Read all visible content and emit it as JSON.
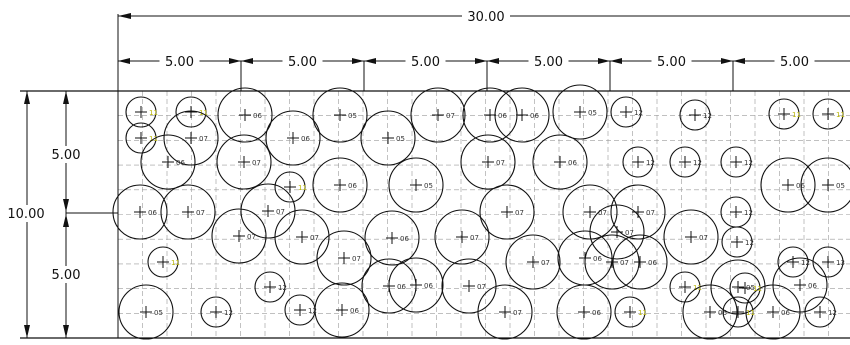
{
  "dimensions": {
    "overall_width": "30.00",
    "segment_width": "5.00",
    "segment_count": 6,
    "overall_height": "10.00",
    "lower_height": "5.00",
    "upper_height": "5.00"
  },
  "colors": {
    "line": "#111111",
    "grid": "#9a9a9a",
    "label_yellow": "#b7b300",
    "label_gray": "#333333"
  },
  "circles": [
    {
      "label": "11",
      "size": "small"
    },
    {
      "label": "11",
      "size": "small"
    },
    {
      "label": "06",
      "size": "large"
    },
    {
      "label": "06",
      "size": "large"
    },
    {
      "label": "05",
      "size": "large"
    },
    {
      "label": "05",
      "size": "large"
    },
    {
      "label": "07",
      "size": "large"
    },
    {
      "label": "06",
      "size": "large"
    },
    {
      "label": "06",
      "size": "large"
    },
    {
      "label": "05",
      "size": "large"
    },
    {
      "label": "12",
      "size": "small"
    },
    {
      "label": "12",
      "size": "small"
    },
    {
      "label": "11",
      "size": "small"
    },
    {
      "label": "11",
      "size": "small"
    },
    {
      "label": "11",
      "size": "small"
    },
    {
      "label": "07",
      "size": "large"
    },
    {
      "label": "06",
      "size": "large"
    },
    {
      "label": "07",
      "size": "large"
    },
    {
      "label": "06",
      "size": "large"
    },
    {
      "label": "07",
      "size": "large"
    },
    {
      "label": "06",
      "size": "large"
    },
    {
      "label": "12",
      "size": "small"
    },
    {
      "label": "12",
      "size": "small"
    },
    {
      "label": "12",
      "size": "small"
    },
    {
      "label": "11",
      "size": "small"
    },
    {
      "label": "06",
      "size": "large"
    },
    {
      "label": "05",
      "size": "large"
    },
    {
      "label": "05",
      "size": "large"
    },
    {
      "label": "06",
      "size": "large"
    },
    {
      "label": "07",
      "size": "large"
    },
    {
      "label": "07",
      "size": "large"
    },
    {
      "label": "07",
      "size": "large"
    },
    {
      "label": "07",
      "size": "large"
    },
    {
      "label": "07",
      "size": "large"
    },
    {
      "label": "07",
      "size": "large"
    },
    {
      "label": "07",
      "size": "large"
    },
    {
      "label": "12",
      "size": "small"
    },
    {
      "label": "07",
      "size": "large"
    },
    {
      "label": "12",
      "size": "small"
    },
    {
      "label": "11",
      "size": "small"
    },
    {
      "label": "07",
      "size": "large"
    },
    {
      "label": "07",
      "size": "large"
    },
    {
      "label": "07",
      "size": "large"
    },
    {
      "label": "06",
      "size": "large"
    },
    {
      "label": "06",
      "size": "large"
    },
    {
      "label": "06",
      "size": "large"
    },
    {
      "label": "12",
      "size": "small"
    },
    {
      "label": "13",
      "size": "small"
    },
    {
      "label": "07",
      "size": "large"
    },
    {
      "label": "07",
      "size": "large"
    },
    {
      "label": "12",
      "size": "small"
    },
    {
      "label": "11",
      "size": "small"
    },
    {
      "label": "05",
      "size": "large"
    },
    {
      "label": "05",
      "size": "large"
    },
    {
      "label": "12",
      "size": "small"
    },
    {
      "label": "12",
      "size": "small"
    },
    {
      "label": "06",
      "size": "large"
    },
    {
      "label": "06",
      "size": "large"
    },
    {
      "label": "07",
      "size": "large"
    },
    {
      "label": "07",
      "size": "large"
    },
    {
      "label": "06",
      "size": "large"
    },
    {
      "label": "11",
      "size": "small"
    },
    {
      "label": "06",
      "size": "large"
    },
    {
      "label": "06",
      "size": "large"
    },
    {
      "label": "12",
      "size": "small"
    },
    {
      "label": "11",
      "size": "small"
    },
    {
      "label": "11",
      "size": "small"
    },
    {
      "label": "06",
      "size": "large"
    },
    {
      "label": "06",
      "size": "large"
    }
  ]
}
